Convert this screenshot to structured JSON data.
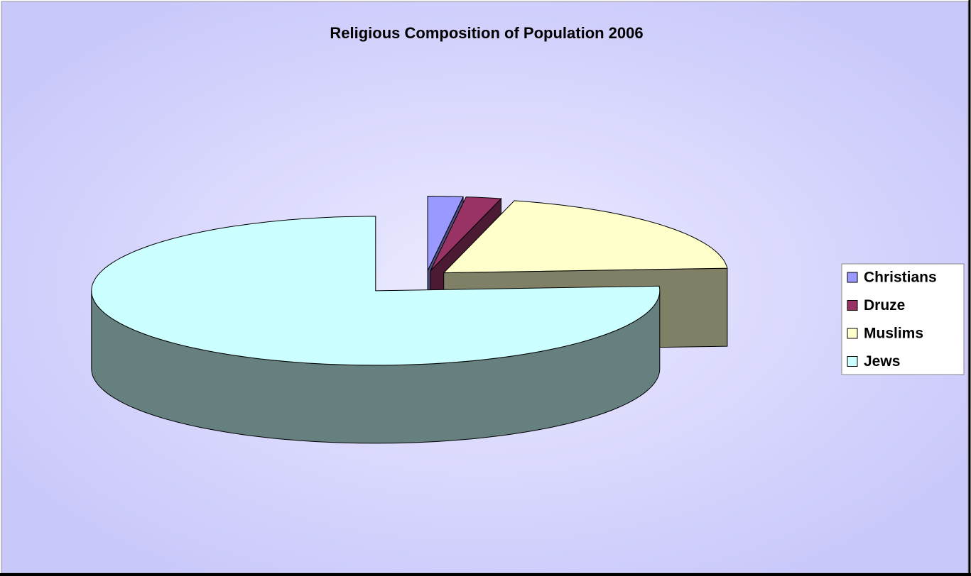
{
  "chart_data": {
    "type": "pie3d",
    "title": "Religious Composition of Population 2006",
    "categories": [
      "Christians",
      "Druze",
      "Muslims",
      "Jews"
    ],
    "values": [
      2,
      2,
      20,
      76
    ],
    "colors": [
      "#9999ff",
      "#993366",
      "#ffffcc",
      "#ccffff"
    ],
    "legend": "right"
  }
}
